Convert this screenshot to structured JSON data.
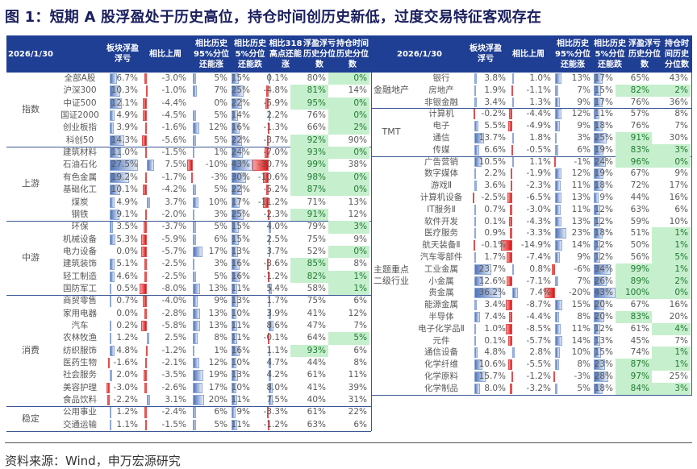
{
  "title": "图 1：短期 A 股浮盈处于历史高位，持仓时间创历史新低，过度交易特征客观存在",
  "source": "资料来源：Wind，申万宏源研究",
  "chart_data": {
    "type": "table",
    "date": "2026/1/30",
    "colors": {
      "header_bg": "#1f3f94",
      "positive_bar": "#4f74ba",
      "negative_bar": "#e01010",
      "highlight_bg": "#c6efce",
      "highlight_text": "#1f7a2e"
    },
    "left_table": {
      "headers": [
        "2026/1/30",
        "板块浮盈浮亏",
        "相比上周",
        "相比历史95%分位还能涨",
        "相比历史5%分位还能跌",
        "相比318高点还能涨",
        "浮盈浮亏历史分位数",
        "持仓时间历史分位数"
      ],
      "groups": [
        {
          "name": "指数",
          "rows": [
            [
              "全部A股",
              "6.7%",
              "-3.0%",
              "5%",
              "15%",
              "0.1%",
              "80%",
              "0%"
            ],
            [
              "沪深300",
              "10.3%",
              "-1.0%",
              "7%",
              "25%",
              "-4.8%",
              "81%",
              "14%"
            ],
            [
              "中证500",
              "12.1%",
              "-4.4%",
              "0%",
              "22%",
              "-5.9%",
              "95%",
              "0%"
            ],
            [
              "国证2000",
              "4.9%",
              "-4.5%",
              "5%",
              "14%",
              "2.2%",
              "76%",
              "0%"
            ],
            [
              "创业板指",
              "3.9%",
              "-1.6%",
              "12%",
              "16%",
              "-1.3%",
              "66%",
              "2%"
            ],
            [
              "科创50",
              "14.3%",
              "-5.6%",
              "5%",
              "22%",
              "-3.7%",
              "92%",
              "90%"
            ]
          ]
        },
        {
          "name": "上游",
          "rows": [
            [
              "建筑材料",
              "11.0%",
              "-1.5%",
              "1%",
              "24%",
              "-7.0%",
              "93%",
              "0%"
            ],
            [
              "石油石化",
              "27.5%",
              "7.5%",
              "-10%",
              "43%",
              "-30.7%",
              "99%",
              "38%"
            ],
            [
              "有色金属",
              "19.2%",
              "-1.7%",
              "-3%",
              "30%",
              "-10.6%",
              "98%",
              "0%"
            ],
            [
              "基础化工",
              "10.1%",
              "-4.2%",
              "5%",
              "22%",
              "-5.2%",
              "87%",
              "0%"
            ],
            [
              "煤炭",
              "4.9%",
              "3.7%",
              "10%",
              "17%",
              "-11.2%",
              "71%",
              "13%"
            ],
            [
              "钢铁",
              "9.1%",
              "-2.0%",
              "3%",
              "25%",
              "-2.3%",
              "91%",
              "12%"
            ]
          ]
        },
        {
          "name": "中游",
          "rows": [
            [
              "环保",
              "3.5%",
              "-3.7%",
              "5%",
              "15%",
              "4.0%",
              "79%",
              "3%"
            ],
            [
              "机械设备",
              "5.3%",
              "-5.9%",
              "6%",
              "15%",
              "2.5%",
              "75%",
              "9%"
            ],
            [
              "电力设备",
              "0.0%",
              "-5.7%",
              "17%",
              "13%",
              "3.7%",
              "52%",
              "0%"
            ],
            [
              "建筑装饰",
              "5.1%",
              "-2.5%",
              "3%",
              "16%",
              "-3.6%",
              "85%",
              "8%"
            ],
            [
              "轻工制造",
              "4.6%",
              "-2.5%",
              "5%",
              "16%",
              "-1.2%",
              "82%",
              "1%"
            ],
            [
              "国防军工",
              "0.5%",
              "-8.0%",
              "13%",
              "11%",
              "5.4%",
              "58%",
              "1%"
            ]
          ]
        },
        {
          "name": "消费",
          "rows": [
            [
              "商贸零售",
              "0.7%",
              "-4.0%",
              "9%",
              "13%",
              "1.7%",
              "75%",
              "6%"
            ],
            [
              "家用电器",
              "0.0%",
              "-2.8%",
              "13%",
              "10%",
              "3.9%",
              "41%",
              "12%"
            ],
            [
              "汽车",
              "0.2%",
              "-5.8%",
              "13%",
              "11%",
              "8.6%",
              "47%",
              "7%"
            ],
            [
              "农林牧渔",
              "1.2%",
              "2.5%",
              "8%",
              "11%",
              "-0.1%",
              "64%",
              "5%"
            ],
            [
              "纺织服饰",
              "4.8%",
              "-1.2%",
              "1%",
              "16%",
              "1.1%",
              "93%",
              "6%"
            ],
            [
              "医药生物",
              "-1.6%",
              "-2.1%",
              "12%",
              "10%",
              "4.7%",
              "44%",
              "8%"
            ],
            [
              "社会服务",
              "2.0%",
              "-3.5%",
              "19%",
              "13%",
              "4.2%",
              "61%",
              "11%"
            ],
            [
              "美容护理",
              "-3.0%",
              "-2.6%",
              "17%",
              "10%",
              "8.0%",
              "41%",
              "39%"
            ],
            [
              "食品饮料",
              "-2.2%",
              "3.1%",
              "20%",
              "11%",
              "7.5%",
              "40%",
              "31%"
            ]
          ]
        },
        {
          "name": "稳定",
          "rows": [
            [
              "公用事业",
              "1.2%",
              "-2.4%",
              "6%",
              "9%",
              "-3.3%",
              "61%",
              "22%"
            ],
            [
              "交通运输",
              "1.1%",
              "-1.5%",
              "5%",
              "11%",
              "-1.2%",
              "63%",
              "6%"
            ]
          ]
        }
      ]
    },
    "right_table": {
      "headers": [
        "2026/1/30",
        "板块浮盈浮亏",
        "相比上周",
        "相比历史95%分位还能涨",
        "相比历史5%分位还能跌",
        "浮盈浮亏历史分位数",
        "持仓时间历史分位数"
      ],
      "groups": [
        {
          "name": "金融地产",
          "rows": [
            [
              "银行",
              "3.8%",
              "1.0%",
              "13%",
              "17%",
              "65%",
              "43%"
            ],
            [
              "房地产",
              "1.9%",
              "-1.1%",
              "7%",
              "15%",
              "82%",
              "2%"
            ],
            [
              "非银金融",
              "3.4%",
              "1.3%",
              "9%",
              "17%",
              "76%",
              "36%"
            ]
          ]
        },
        {
          "name": "TMT",
          "rows": [
            [
              "计算机",
              "-0.2%",
              "-4.4%",
              "12%",
              "11%",
              "57%",
              "8%"
            ],
            [
              "电子",
              "5.5%",
              "-4.9%",
              "9%",
              "18%",
              "76%",
              "7%"
            ],
            [
              "通信",
              "13.7%",
              "1.8%",
              "3%",
              "25%",
              "91%",
              "30%"
            ],
            [
              "传媒",
              "6.6%",
              "-0.5%",
              "6%",
              "19%",
              "83%",
              "3%"
            ]
          ]
        },
        {
          "name": "主题重点二级行业",
          "rows": [
            [
              "广告营销",
              "10.5%",
              "1.1%",
              "-1%",
              "24%",
              "96%",
              "0%"
            ],
            [
              "数字媒体",
              "2.2%",
              "-1.9%",
              "12%",
              "19%",
              "67%",
              "9%"
            ],
            [
              "游戏Ⅱ",
              "3.6%",
              "-2.3%",
              "11%",
              "18%",
              "72%",
              "17%"
            ],
            [
              "计算机设备",
              "-2.5%",
              "-6.5%",
              "13%",
              "9%",
              "44%",
              "16%"
            ],
            [
              "IT服务Ⅱ",
              "0.7%",
              "-3.0%",
              "11%",
              "12%",
              "63%",
              "6%"
            ],
            [
              "软件开发",
              "0.1%",
              "-4.3%",
              "13%",
              "12%",
              "59%",
              "10%"
            ],
            [
              "医疗服务",
              "0.9%",
              "-3.3%",
              "23%",
              "18%",
              "51%",
              "1%"
            ],
            [
              "航天装备Ⅱ",
              "-0.1%",
              "-14.9%",
              "14%",
              "12%",
              "50%",
              "1%"
            ],
            [
              "汽车零部件",
              "1.7%",
              "-7.4%",
              "9%",
              "12%",
              "56%",
              "5%"
            ],
            [
              "工业金属",
              "23.7%",
              "0.8%",
              "-6%",
              "34%",
              "99%",
              "1%"
            ],
            [
              "小金属",
              "12.6%",
              "-7.1%",
              "7%",
              "26%",
              "89%",
              "2%"
            ],
            [
              "贵金属",
              "36.2%",
              "7.4%",
              "-20%",
              "43%",
              "100%",
              "0%"
            ],
            [
              "能源金属",
              "3.4%",
              "-8.7%",
              "15%",
              "20%",
              "67%",
              "16%"
            ],
            [
              "半导体",
              "7.4%",
              "-4.4%",
              "8%",
              "20%",
              "83%",
              "20%"
            ],
            [
              "电子化学品Ⅱ",
              "1.0%",
              "-8.5%",
              "11%",
              "12%",
              "61%",
              "4%"
            ],
            [
              "元件",
              "0.1%",
              "-5.7%",
              "14%",
              "13%",
              "45%",
              "7%"
            ],
            [
              "通信设备",
              "4.8%",
              "2.8%",
              "10%",
              "15%",
              "74%",
              "1%"
            ],
            [
              "化学纤维",
              "10.6%",
              "-5.5%",
              "8%",
              "23%",
              "87%",
              "1%"
            ],
            [
              "化学原料",
              "15.7%",
              "-1.2%",
              "-3%",
              "28%",
              "97%",
              "25%"
            ],
            [
              "化学制品",
              "8.0%",
              "-3.2%",
              "5%",
              "18%",
              "84%",
              "3%"
            ]
          ]
        }
      ]
    }
  }
}
